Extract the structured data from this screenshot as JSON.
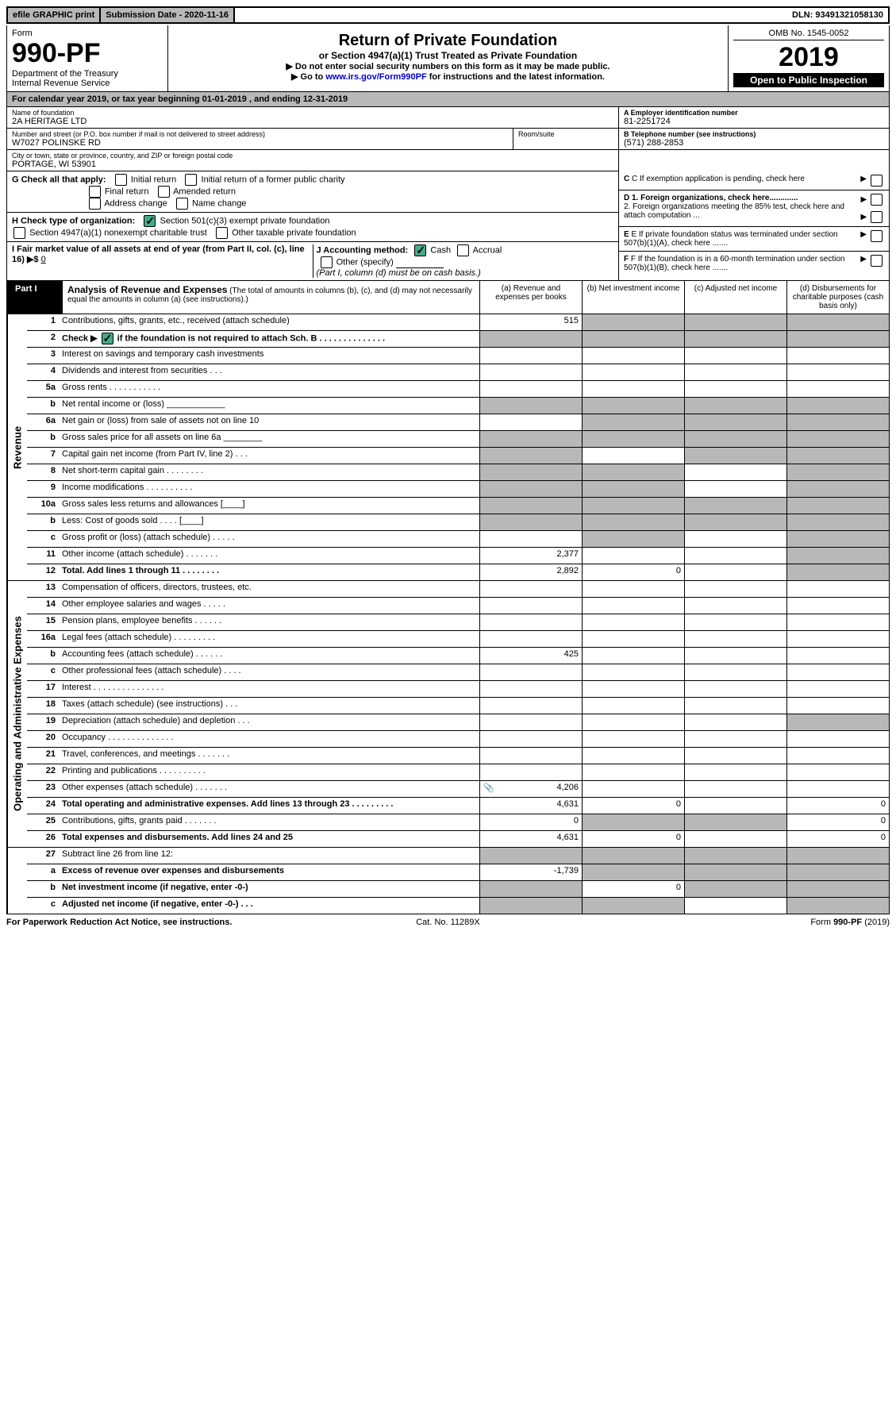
{
  "top": {
    "graphic": "efile GRAPHIC print",
    "submission": "Submission Date - 2020-11-16",
    "dln": "DLN: 93491321058130"
  },
  "header": {
    "form_label": "Form",
    "form_num": "990-PF",
    "dept": "Department of the Treasury",
    "irs": "Internal Revenue Service",
    "title": "Return of Private Foundation",
    "subtitle": "or Section 4947(a)(1) Trust Treated as Private Foundation",
    "note1": "▶ Do not enter social security numbers on this form as it may be made public.",
    "note2_pre": "▶ Go to ",
    "note2_link": "www.irs.gov/Form990PF",
    "note2_post": " for instructions and the latest information.",
    "omb": "OMB No. 1545-0052",
    "year": "2019",
    "open": "Open to Public Inspection"
  },
  "calendar": "For calendar year 2019, or tax year beginning 01-01-2019               , and ending 12-31-2019",
  "entity": {
    "name_label": "Name of foundation",
    "name": "2A HERITAGE LTD",
    "addr_label": "Number and street (or P.O. box number if mail is not delivered to street address)",
    "addr": "W7027 POLINSKE RD",
    "room_label": "Room/suite",
    "room": "",
    "city_label": "City or town, state or province, country, and ZIP or foreign postal code",
    "city": "PORTAGE, WI  53901",
    "a_label": "A Employer identification number",
    "a_value": "81-2251724",
    "b_label": "B Telephone number (see instructions)",
    "b_value": "(571) 288-2853",
    "c_label": "C If exemption application is pending, check here",
    "d1": "D 1. Foreign organizations, check here.............",
    "d2": "2. Foreign organizations meeting the 85% test, check here and attach computation ...",
    "e": "E  If private foundation status was terminated under section 507(b)(1)(A), check here .......",
    "f": "F  If the foundation is in a 60-month termination under section 507(b)(1)(B), check here .......",
    "g_label": "G Check all that apply:",
    "g_opts": [
      "Initial return",
      "Initial return of a former public charity",
      "Final return",
      "Amended return",
      "Address change",
      "Name change"
    ],
    "h_label": "H Check type of organization:",
    "h_opt1": "Section 501(c)(3) exempt private foundation",
    "h_opt2": "Section 4947(a)(1) nonexempt charitable trust",
    "h_opt3": "Other taxable private foundation",
    "i_label": "I Fair market value of all assets at end of year (from Part II, col. (c), line 16) ▶$",
    "i_value": "0",
    "j_label": "J Accounting method:",
    "j_cash": "Cash",
    "j_accrual": "Accrual",
    "j_other": "Other (specify)",
    "j_note": "(Part I, column (d) must be on cash basis.)"
  },
  "part1": {
    "label": "Part I",
    "title": "Analysis of Revenue and Expenses",
    "subtitle": "(The total of amounts in columns (b), (c), and (d) may not necessarily equal the amounts in column (a) (see instructions).)",
    "col_a": "(a)   Revenue and expenses per books",
    "col_b": "(b)  Net investment income",
    "col_c": "(c)  Adjusted net income",
    "col_d": "(d)  Disbursements for charitable purposes (cash basis only)"
  },
  "side_labels": {
    "rev": "Revenue",
    "exp": "Operating and Administrative Expenses"
  },
  "rows_rev": [
    {
      "n": "1",
      "d": "Contributions, gifts, grants, etc., received (attach schedule)",
      "a": "515",
      "sb": true,
      "sc": true,
      "sd": true
    },
    {
      "n": "2",
      "d": "Check ▶ [x] if the foundation is not required to attach Sch. B",
      "sa": true,
      "sb": true,
      "sc": true,
      "sd": true,
      "ck": true,
      "bold": true
    },
    {
      "n": "3",
      "d": "Interest on savings and temporary cash investments"
    },
    {
      "n": "4",
      "d": "Dividends and interest from securities    .   .   ."
    },
    {
      "n": "5a",
      "d": "Gross rents     .   .   .   .   .   .   .   .   .   .   ."
    },
    {
      "n": "b",
      "d": "Net rental income or (loss)  ____________",
      "sa": true,
      "sb": true,
      "sc": true,
      "sd": true
    },
    {
      "n": "6a",
      "d": "Net gain or (loss) from sale of assets not on line 10",
      "sb": true,
      "sc": true,
      "sd": true
    },
    {
      "n": "b",
      "d": "Gross sales price for all assets on line 6a  ________",
      "sa": true,
      "sb": true,
      "sc": true,
      "sd": true
    },
    {
      "n": "7",
      "d": "Capital gain net income (from Part IV, line 2)    .   .   .",
      "sa": true,
      "sc": true,
      "sd": true
    },
    {
      "n": "8",
      "d": "Net short-term capital gain   .   .   .   .   .   .   .   .",
      "sa": true,
      "sb": true,
      "sd": true
    },
    {
      "n": "9",
      "d": "Income modifications  .   .   .   .   .   .   .   .   .   .",
      "sa": true,
      "sb": true,
      "sd": true
    },
    {
      "n": "10a",
      "d": "Gross sales less returns and allowances  [____]",
      "sa": true,
      "sb": true,
      "sc": true,
      "sd": true
    },
    {
      "n": "b",
      "d": "Less: Cost of goods sold     .   .   .   .   [____]",
      "sa": true,
      "sb": true,
      "sc": true,
      "sd": true
    },
    {
      "n": "c",
      "d": "Gross profit or (loss) (attach schedule)    .   .   .   .   .",
      "sb": true,
      "sd": true
    },
    {
      "n": "11",
      "d": "Other income (attach schedule)    .   .   .   .   .   .   .",
      "a": "2,377",
      "sd": true
    },
    {
      "n": "12",
      "d": "Total. Add lines 1 through 11    .   .   .   .   .   .   .   .",
      "a": "2,892",
      "b": "0",
      "sd": true,
      "bold": true
    }
  ],
  "rows_exp": [
    {
      "n": "13",
      "d": "Compensation of officers, directors, trustees, etc."
    },
    {
      "n": "14",
      "d": "Other employee salaries and wages    .   .   .   .   ."
    },
    {
      "n": "15",
      "d": "Pension plans, employee benefits   .   .   .   .   .   ."
    },
    {
      "n": "16a",
      "d": "Legal fees (attach schedule) .   .   .   .   .   .   .   .   ."
    },
    {
      "n": "b",
      "d": "Accounting fees (attach schedule)   .   .   .   .   .   .",
      "a": "425"
    },
    {
      "n": "c",
      "d": "Other professional fees (attach schedule)    .   .   .   ."
    },
    {
      "n": "17",
      "d": "Interest   .   .   .   .   .   .   .   .   .   .   .   .   .   .   ."
    },
    {
      "n": "18",
      "d": "Taxes (attach schedule) (see instructions)    .   .   ."
    },
    {
      "n": "19",
      "d": "Depreciation (attach schedule) and depletion    .   .   .",
      "sd": true
    },
    {
      "n": "20",
      "d": "Occupancy  .   .   .   .   .   .   .   .   .   .   .   .   .   ."
    },
    {
      "n": "21",
      "d": "Travel, conferences, and meetings  .   .   .   .   .   .   ."
    },
    {
      "n": "22",
      "d": "Printing and publications  .   .   .   .   .   .   .   .   .   ."
    },
    {
      "n": "23",
      "d": "Other expenses (attach schedule)   .   .   .   .   .   .   .",
      "a": "4,206",
      "icon": true
    },
    {
      "n": "24",
      "d": "Total operating and administrative expenses. Add lines 13 through 23   .   .   .   .   .   .   .   .   .",
      "a": "4,631",
      "b": "0",
      "d4": "0",
      "bold": true
    },
    {
      "n": "25",
      "d": "Contributions, gifts, grants paid     .   .   .   .   .   .   .",
      "a": "0",
      "sb": true,
      "sc": true,
      "d4": "0"
    },
    {
      "n": "26",
      "d": "Total expenses and disbursements. Add lines 24 and 25",
      "a": "4,631",
      "b": "0",
      "d4": "0",
      "bold": true
    }
  ],
  "rows_calc": [
    {
      "n": "27",
      "d": "Subtract line 26 from line 12:",
      "sa": true,
      "sb": true,
      "sc": true,
      "sd": true
    },
    {
      "n": "a",
      "d": "Excess of revenue over expenses and disbursements",
      "a": "-1,739",
      "sb": true,
      "sc": true,
      "sd": true,
      "bold": true
    },
    {
      "n": "b",
      "d": "Net investment income (if negative, enter -0-)",
      "sa": true,
      "b": "0",
      "sc": true,
      "sd": true,
      "bold": true
    },
    {
      "n": "c",
      "d": "Adjusted net income (if negative, enter -0-)   .   .   .",
      "sa": true,
      "sb": true,
      "sd": true,
      "bold": true
    }
  ],
  "footer": {
    "left": "For Paperwork Reduction Act Notice, see instructions.",
    "center": "Cat. No. 11289X",
    "right": "Form 990-PF (2019)"
  },
  "colors": {
    "shade": "#b8b8b8",
    "link": "#0000cc",
    "check": "#44aa88"
  }
}
